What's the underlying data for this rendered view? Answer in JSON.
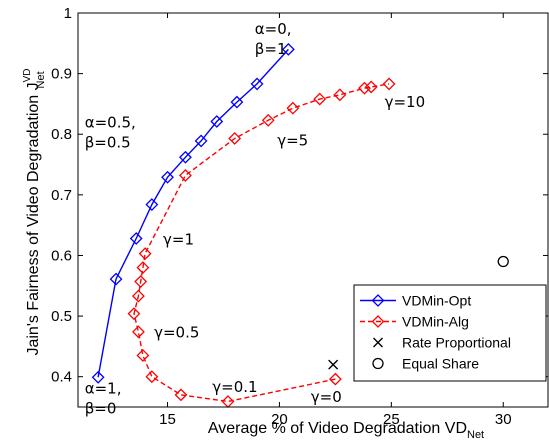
{
  "chart_data": {
    "type": "line",
    "xlabel": "Average % of Video Degradation VD",
    "xlabel_sub": "Net",
    "ylabel": "Jain's Fairness of Video Degradation J",
    "ylabel_sup": "VD",
    "ylabel_sub": "Net",
    "xlim": [
      11,
      32
    ],
    "ylim": [
      0.35,
      1.0
    ],
    "xticks": [
      "15",
      "20",
      "25",
      "30"
    ],
    "yticks": [
      "0.4",
      "0.5",
      "0.6",
      "0.7",
      "0.8",
      "0.9",
      "1"
    ],
    "grid": false,
    "legend_position": "bottom-right",
    "series": [
      {
        "name": "VDMin-Opt",
        "color": "#0000ff",
        "style": "solid",
        "marker": "diamond",
        "points": [
          [
            11.9,
            0.399
          ],
          [
            12.7,
            0.561
          ],
          [
            13.6,
            0.628
          ],
          [
            14.3,
            0.684
          ],
          [
            15.0,
            0.729
          ],
          [
            15.8,
            0.762
          ],
          [
            16.5,
            0.789
          ],
          [
            17.2,
            0.821
          ],
          [
            18.1,
            0.853
          ],
          [
            19.0,
            0.883
          ],
          [
            20.4,
            0.94
          ]
        ]
      },
      {
        "name": "VDMin-Alg",
        "color": "#ff0000",
        "style": "dashed",
        "marker": "diamond",
        "points": [
          [
            22.5,
            0.396
          ],
          [
            17.7,
            0.359
          ],
          [
            15.6,
            0.37
          ],
          [
            14.3,
            0.4
          ],
          [
            13.9,
            0.435
          ],
          [
            13.7,
            0.474
          ],
          [
            13.5,
            0.504
          ],
          [
            13.7,
            0.533
          ],
          [
            13.8,
            0.557
          ],
          [
            13.9,
            0.58
          ],
          [
            14.0,
            0.603
          ],
          [
            15.8,
            0.732
          ],
          [
            18.0,
            0.793
          ],
          [
            19.5,
            0.823
          ],
          [
            20.6,
            0.843
          ],
          [
            21.8,
            0.858
          ],
          [
            22.7,
            0.865
          ],
          [
            23.8,
            0.876
          ],
          [
            24.1,
            0.878
          ],
          [
            24.9,
            0.883
          ]
        ]
      },
      {
        "name": "Rate Proportional",
        "color": "#000000",
        "marker": "x",
        "points": [
          [
            22.4,
            0.42
          ]
        ]
      },
      {
        "name": "Equal Share",
        "color": "#000000",
        "marker": "circle",
        "points": [
          [
            30.0,
            0.59
          ]
        ]
      }
    ],
    "annotations": [
      {
        "lines": [
          "α=0,",
          "β=1"
        ],
        "x": 18.9,
        "y": 0.965
      },
      {
        "lines": [
          "α=0.5,",
          "β=0.5"
        ],
        "x": 11.3,
        "y": 0.811
      },
      {
        "lines": [
          "γ=10"
        ],
        "x": 24.7,
        "y": 0.845
      },
      {
        "lines": [
          "γ=5"
        ],
        "x": 19.9,
        "y": 0.781
      },
      {
        "lines": [
          "γ=1"
        ],
        "x": 14.8,
        "y": 0.618
      },
      {
        "lines": [
          "γ=0.5"
        ],
        "x": 14.4,
        "y": 0.465
      },
      {
        "lines": [
          "γ=0.1"
        ],
        "x": 17.0,
        "y": 0.375
      },
      {
        "lines": [
          "γ=0"
        ],
        "x": 21.4,
        "y": 0.358
      },
      {
        "lines": [
          "α=1,",
          "β=0"
        ],
        "x": 11.3,
        "y": 0.372
      }
    ]
  }
}
